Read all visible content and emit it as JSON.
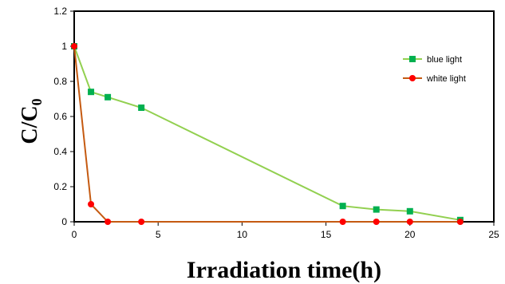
{
  "chart_data": {
    "type": "line",
    "title": "",
    "xlabel": "Irradiation time(h)",
    "ylabel": "C/C",
    "ylabel_subscript": "0",
    "xlim": [
      0,
      25
    ],
    "ylim": [
      0,
      1.2
    ],
    "xticks": [
      "0",
      "5",
      "10",
      "15",
      "20",
      "25"
    ],
    "yticks": [
      "0",
      "0.2",
      "0.4",
      "0.6",
      "0.8",
      "1",
      "1.2"
    ],
    "grid": false,
    "legend_position": "top-right",
    "series": [
      {
        "name": "blue light",
        "color": "#92d050",
        "marker": "square",
        "marker_color": "#00b050",
        "x": [
          0,
          1,
          2,
          4,
          16,
          18,
          20,
          23
        ],
        "y": [
          1.0,
          0.74,
          0.71,
          0.65,
          0.09,
          0.07,
          0.06,
          0.01
        ]
      },
      {
        "name": "white light",
        "color": "#c55a11",
        "marker": "circle",
        "marker_color": "#ff0000",
        "x": [
          0,
          1,
          2,
          4,
          16,
          18,
          20,
          23
        ],
        "y": [
          1.0,
          0.1,
          0.0,
          0.0,
          0.0,
          0.0,
          0.0,
          0.0
        ]
      }
    ]
  }
}
